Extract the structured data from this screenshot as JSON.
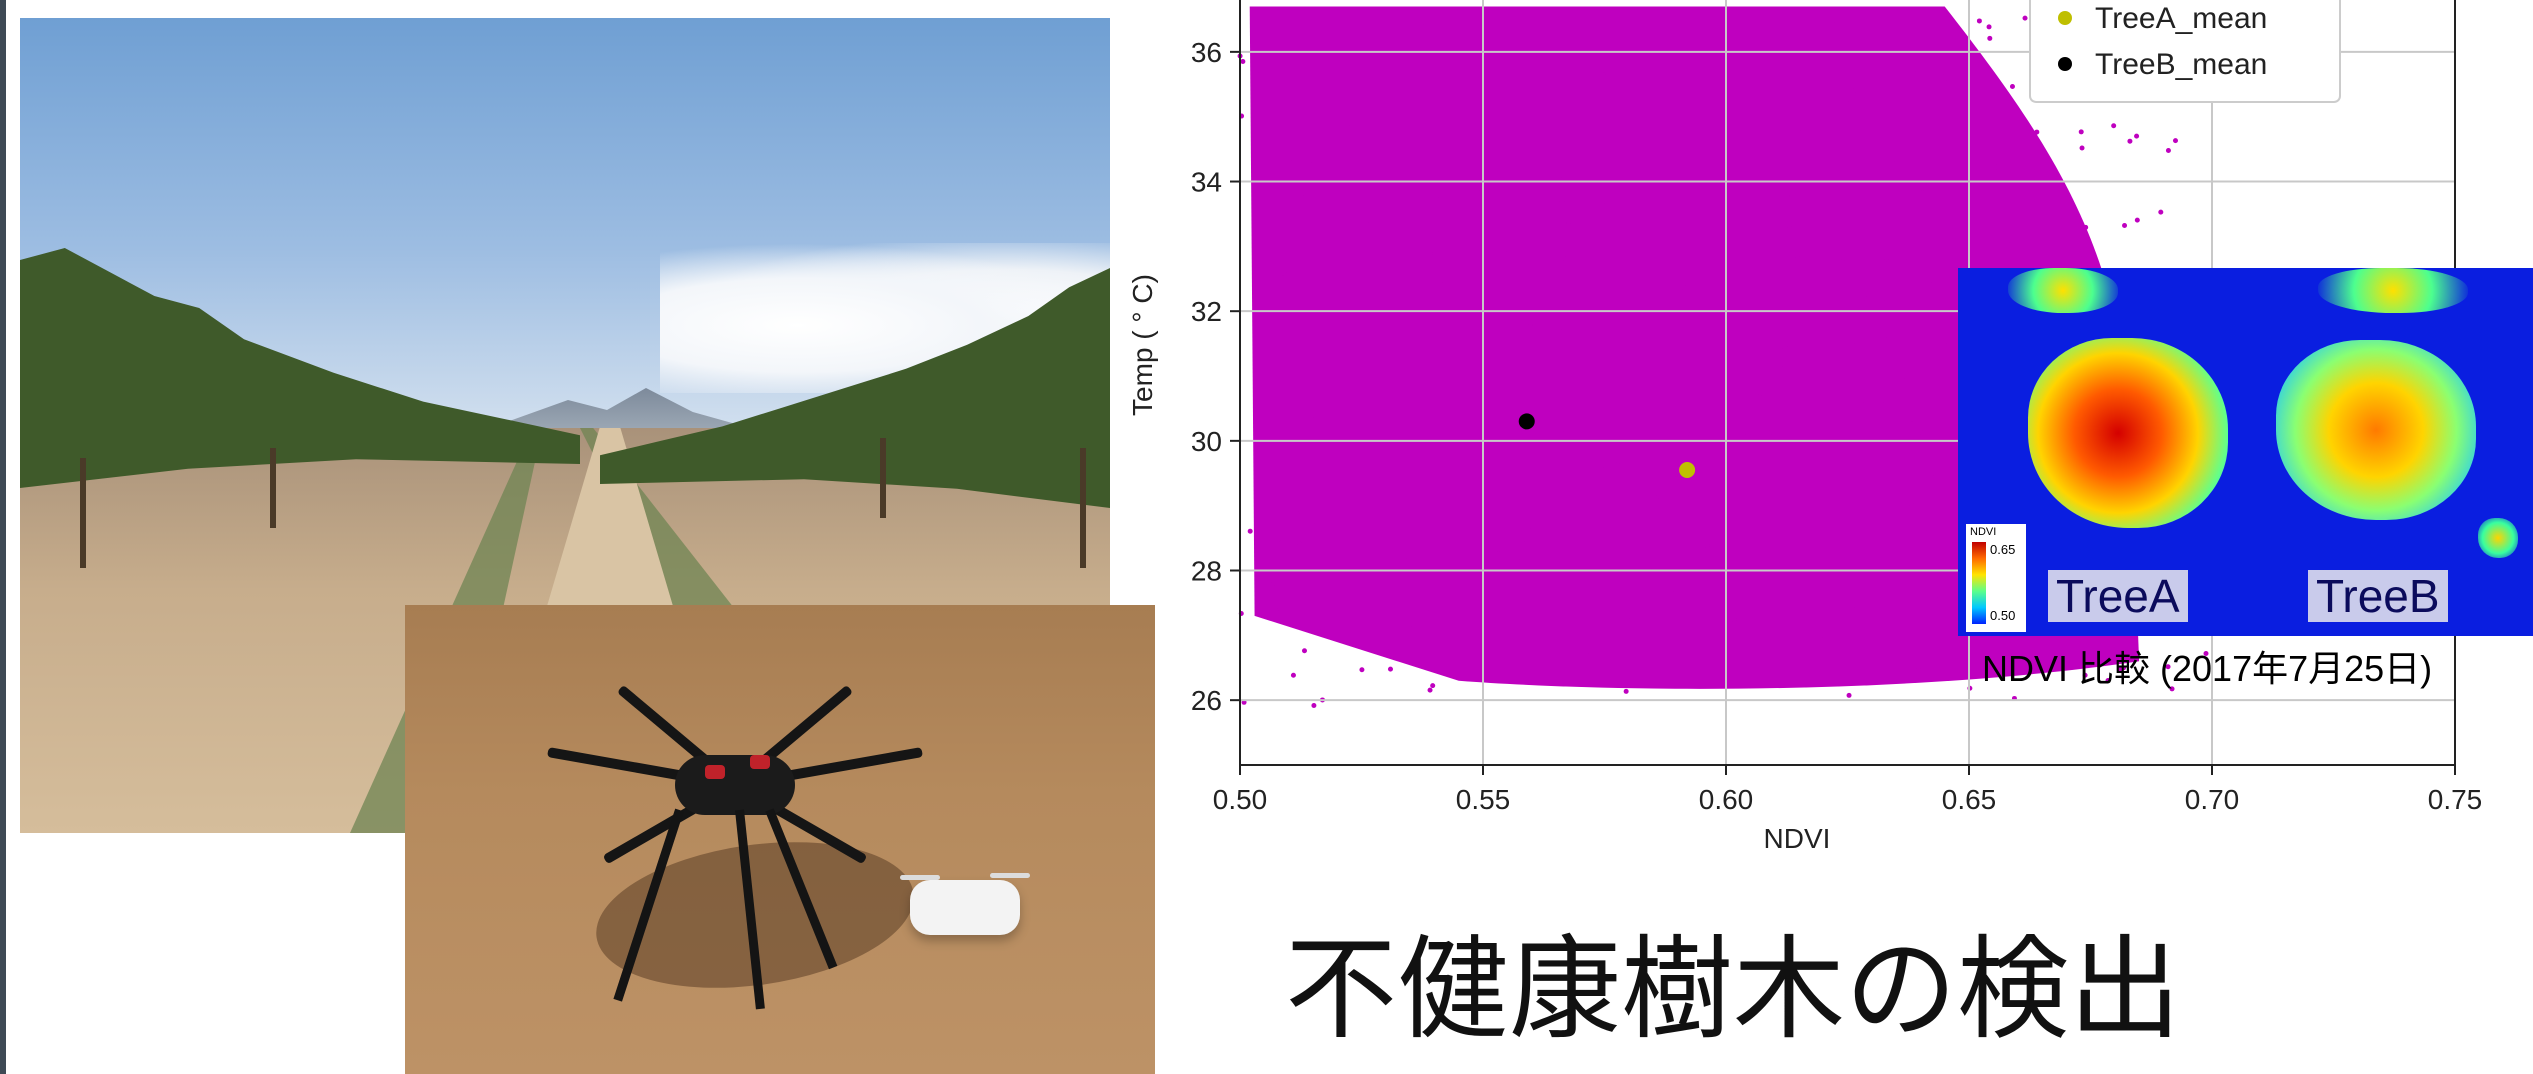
{
  "slide": {
    "heading": "不健康樹木の検出"
  },
  "photos": {
    "orchard": "orchard-photo",
    "drone": "drone-photo"
  },
  "ndvi_inset": {
    "colorbar_title": "NDVI",
    "colorbar_max": "0.65",
    "colorbar_min": "0.50",
    "label_a": "TreeA",
    "label_b": "TreeB",
    "caption": "NDVI 比較 (2017年7月25日)"
  },
  "chart_data": {
    "type": "scatter",
    "xlabel": "NDVI",
    "ylabel": "Temp ( ° C)",
    "xlim": [
      0.5,
      0.75
    ],
    "ylim": [
      25,
      36.8
    ],
    "xticks": [
      "0.50",
      "0.55",
      "0.60",
      "0.65",
      "0.70",
      "0.75"
    ],
    "yticks": [
      "26",
      "28",
      "30",
      "32",
      "34",
      "36"
    ],
    "grid": true,
    "legend_position": "top-right",
    "colors": {
      "cloud": "#bf00bf",
      "tree_a_mean": "#bfbf00",
      "tree_b_mean": "#000000"
    },
    "series": [
      {
        "name": "TreeA_mean",
        "x": [
          0.592
        ],
        "y": [
          29.55
        ]
      },
      {
        "name": "TreeB_mean",
        "x": [
          0.559
        ],
        "y": [
          30.3
        ]
      }
    ]
  }
}
